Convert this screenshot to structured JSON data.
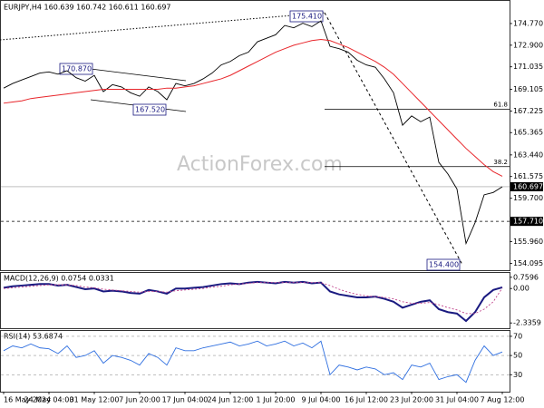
{
  "chart_data": [
    {
      "type": "line",
      "title": "EURJPY,H4  160.639 160.742 160.611 160.697",
      "watermark": "ActionForex.com",
      "ylim": [
        153.5,
        176.72
      ],
      "yticks": [
        {
          "value": 174.77,
          "label": "174.770"
        },
        {
          "value": 172.9,
          "label": "172.900"
        },
        171.035,
        169.105,
        167.225,
        165.365,
        {
          "value": 163.44,
          "label": "163.440"
        },
        161.575,
        {
          "value": 159.7,
          "label": "159.700"
        },
        {
          "value": 155.96,
          "label": "155.960"
        },
        154.095
      ],
      "series": [
        {
          "name": "EURJPY",
          "color": "#000000",
          "values": [
            169.2,
            169.6,
            169.9,
            170.2,
            170.5,
            170.6,
            170.4,
            170.7,
            170.1,
            169.8,
            170.3,
            168.9,
            169.5,
            169.3,
            168.8,
            168.5,
            169.3,
            168.9,
            168.2,
            169.6,
            169.4,
            169.6,
            170.0,
            170.5,
            171.2,
            171.5,
            172.0,
            172.3,
            173.2,
            173.5,
            173.8,
            174.6,
            174.4,
            174.8,
            174.5,
            175.0,
            172.8,
            172.6,
            172.3,
            171.6,
            171.2,
            171.0,
            170.0,
            168.8,
            166.0,
            166.8,
            166.3,
            166.7,
            162.8,
            161.8,
            160.5,
            155.8,
            157.6,
            160.0,
            160.2,
            160.697
          ]
        },
        {
          "name": "MA",
          "color": "#e8262b",
          "values": [
            167.9,
            168.0,
            168.1,
            168.3,
            168.4,
            168.5,
            168.6,
            168.7,
            168.8,
            168.9,
            169.0,
            169.1,
            169.1,
            169.1,
            169.1,
            169.1,
            169.1,
            169.1,
            169.2,
            169.2,
            169.3,
            169.4,
            169.6,
            169.8,
            170.0,
            170.3,
            170.7,
            171.1,
            171.5,
            171.9,
            172.3,
            172.6,
            172.9,
            173.1,
            173.3,
            173.4,
            173.3,
            173.0,
            172.7,
            172.3,
            171.9,
            171.5,
            171.0,
            170.4,
            169.6,
            168.8,
            168.0,
            167.2,
            166.4,
            165.6,
            164.8,
            164.0,
            163.3,
            162.6,
            162.0,
            161.6
          ]
        }
      ],
      "last_price": 160.697,
      "hlines": [
        {
          "value": 157.71,
          "label": "157.710"
        }
      ],
      "fib_levels": [
        {
          "value": 167.38,
          "label": "61.8"
        },
        {
          "value": 162.43,
          "label": "38.2"
        }
      ],
      "annotations": [
        "175.410",
        "170.870",
        "167.520",
        "154.400"
      ]
    },
    {
      "type": "line",
      "title": "MACD(12,26,9) 0.0754 0.0331",
      "ylim": [
        -2.693,
        1.057
      ],
      "yticks": [
        0.7596,
        {
          "value": 0,
          "label": "0.00"
        },
        -2.3359
      ],
      "series": [
        {
          "name": "MACD",
          "color": "#1a1a80",
          "values": [
            0.05,
            0.15,
            0.2,
            0.25,
            0.3,
            0.3,
            0.2,
            0.25,
            0.1,
            -0.05,
            0.0,
            -0.2,
            -0.15,
            -0.2,
            -0.3,
            -0.35,
            -0.1,
            -0.2,
            -0.35,
            0.0,
            0.0,
            0.05,
            0.1,
            0.2,
            0.3,
            0.35,
            0.3,
            0.4,
            0.45,
            0.4,
            0.35,
            0.45,
            0.4,
            0.45,
            0.35,
            0.4,
            -0.2,
            -0.4,
            -0.5,
            -0.6,
            -0.6,
            -0.55,
            -0.7,
            -0.9,
            -1.3,
            -1.1,
            -0.9,
            -0.8,
            -1.4,
            -1.6,
            -1.7,
            -2.2,
            -1.6,
            -0.6,
            -0.1,
            0.0754
          ]
        },
        {
          "name": "Signal",
          "color": "#c0408a",
          "values": [
            0.0,
            0.05,
            0.1,
            0.15,
            0.2,
            0.25,
            0.25,
            0.25,
            0.2,
            0.1,
            0.05,
            -0.05,
            -0.1,
            -0.15,
            -0.2,
            -0.25,
            -0.2,
            -0.2,
            -0.25,
            -0.15,
            -0.1,
            -0.05,
            0.0,
            0.1,
            0.15,
            0.25,
            0.3,
            0.35,
            0.4,
            0.4,
            0.4,
            0.4,
            0.4,
            0.4,
            0.4,
            0.4,
            0.2,
            -0.05,
            -0.25,
            -0.4,
            -0.5,
            -0.55,
            -0.6,
            -0.7,
            -0.9,
            -1.0,
            -1.0,
            -0.95,
            -1.1,
            -1.3,
            -1.45,
            -1.7,
            -1.7,
            -1.4,
            -0.9,
            0.0331
          ]
        }
      ]
    },
    {
      "type": "line",
      "title": "RSI(14) 53.6874",
      "ylim": [
        12.3,
        75.6
      ],
      "yticks": [
        70,
        50,
        30
      ],
      "grid": true,
      "categories": [
        "16 May 2024",
        null,
        null,
        null,
        null,
        "24 May 04:00",
        null,
        null,
        null,
        null,
        "31 May 12:00",
        null,
        null,
        null,
        null,
        "7 Jun 20:00",
        null,
        null,
        null,
        null,
        "17 Jun 04:00",
        null,
        null,
        null,
        null,
        "24 Jun 12:00",
        null,
        null,
        null,
        null,
        "1 Jul 20:00",
        null,
        null,
        null,
        null,
        "9 Jul 04:00",
        null,
        null,
        null,
        null,
        "16 Jul 12:00",
        null,
        null,
        null,
        null,
        "23 Jul 20:00",
        null,
        null,
        null,
        null,
        "31 Jul 04:00",
        null,
        null,
        null,
        null,
        "7 Aug 12:00"
      ],
      "series": [
        {
          "name": "RSI",
          "color": "#2f6fe0",
          "values": [
            55,
            60,
            58,
            62,
            58,
            57,
            52,
            60,
            48,
            50,
            55,
            42,
            50,
            48,
            45,
            40,
            52,
            48,
            40,
            58,
            55,
            55,
            58,
            60,
            62,
            64,
            60,
            62,
            65,
            60,
            62,
            65,
            60,
            63,
            58,
            65,
            30,
            40,
            38,
            35,
            38,
            36,
            30,
            32,
            25,
            40,
            38,
            42,
            25,
            28,
            30,
            22,
            45,
            60,
            50,
            53.6874
          ]
        }
      ]
    }
  ]
}
